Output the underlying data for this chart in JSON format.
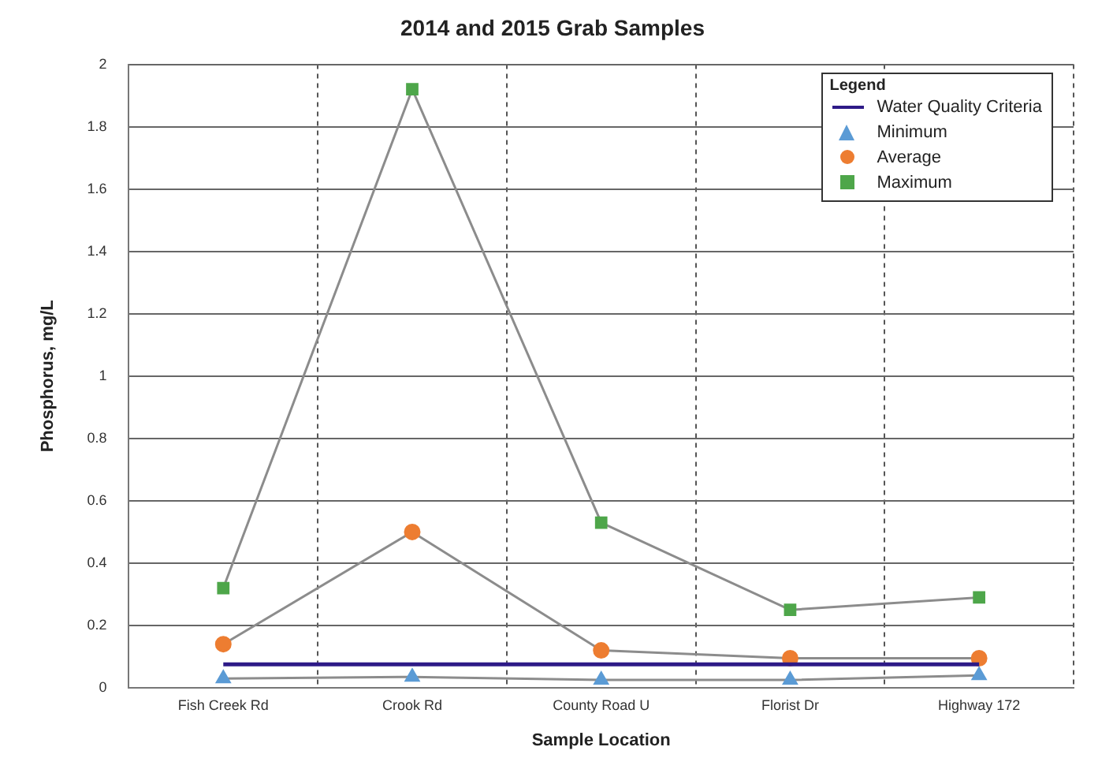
{
  "chart_data": {
    "type": "line",
    "title": "2014 and 2015 Grab Samples",
    "xlabel": "Sample Location",
    "ylabel": "Phosphorus, mg/L",
    "legend_title": "Legend",
    "legend": "top right",
    "grid": true,
    "categories": [
      "Fish Creek Rd",
      "Crook Rd",
      "County Road U",
      "Florist Dr",
      "Highway 172"
    ],
    "ylim": [
      0,
      2
    ],
    "yticks": [
      0,
      0.2,
      0.4,
      0.6,
      0.8,
      1,
      1.2,
      1.4,
      1.6,
      1.8,
      2
    ],
    "series": [
      {
        "name": "Water Quality Criteria",
        "color": "#2e1a87",
        "marker": "none",
        "values": [
          0.075,
          0.075,
          0.075,
          0.075,
          0.075
        ]
      },
      {
        "name": "Minimum",
        "color": "#5b9bd5",
        "marker": "triangle",
        "values": [
          0.03,
          0.035,
          0.025,
          0.025,
          0.04
        ]
      },
      {
        "name": "Average",
        "color": "#ed7d31",
        "marker": "circle",
        "values": [
          0.14,
          0.5,
          0.12,
          0.095,
          0.095
        ]
      },
      {
        "name": "Maximum",
        "color": "#4ea64a",
        "marker": "square",
        "values": [
          0.32,
          1.92,
          0.53,
          0.25,
          0.29
        ]
      }
    ]
  }
}
